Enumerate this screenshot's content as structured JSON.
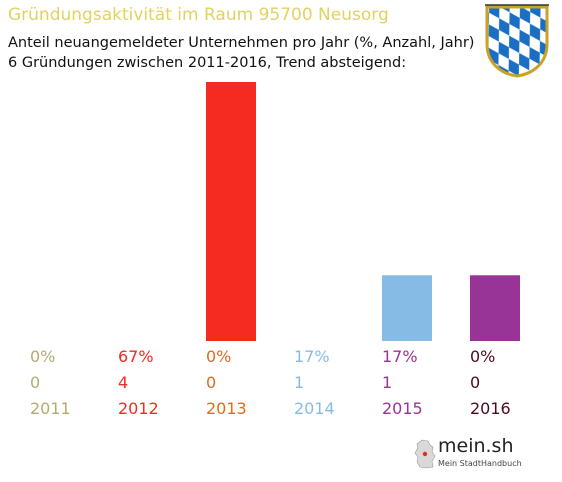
{
  "header": {
    "title": "Gründungsaktivität im Raum 95700 Neusorg",
    "subtitle_line1": "Anteil neuangemeldeter Unternehmen pro Jahr (%, Anzahl, Jahr)",
    "subtitle_line2": "6 Gründungen zwischen 2011-2016, Trend absteigend:"
  },
  "emblem": {
    "icon": "bavarian-coat-of-arms-icon",
    "colors": [
      "#1a6fc4",
      "#ffffff"
    ]
  },
  "logo": {
    "name": "mein.sh",
    "tagline": "Mein StadtHandbuch",
    "icon": "germany-map-icon"
  },
  "chart_data": {
    "type": "bar",
    "categories": [
      "2011",
      "2012",
      "2013",
      "2014",
      "2015",
      "2016"
    ],
    "values": [
      0,
      67,
      0,
      17,
      17,
      0
    ],
    "percent_labels": [
      "0%",
      "67%",
      "0%",
      "17%",
      "17%",
      "0%"
    ],
    "counts": [
      "0",
      "4",
      "0",
      "1",
      "1",
      "0"
    ],
    "colors": [
      "#b5ab6d",
      "#f52b22",
      "#e06a1f",
      "#86bbe6",
      "#983497",
      "#4a0a22"
    ],
    "title": "Gründungsaktivität im Raum 95700 Neusorg",
    "ylim": [
      0,
      67
    ],
    "grid": false,
    "legend": "none"
  }
}
